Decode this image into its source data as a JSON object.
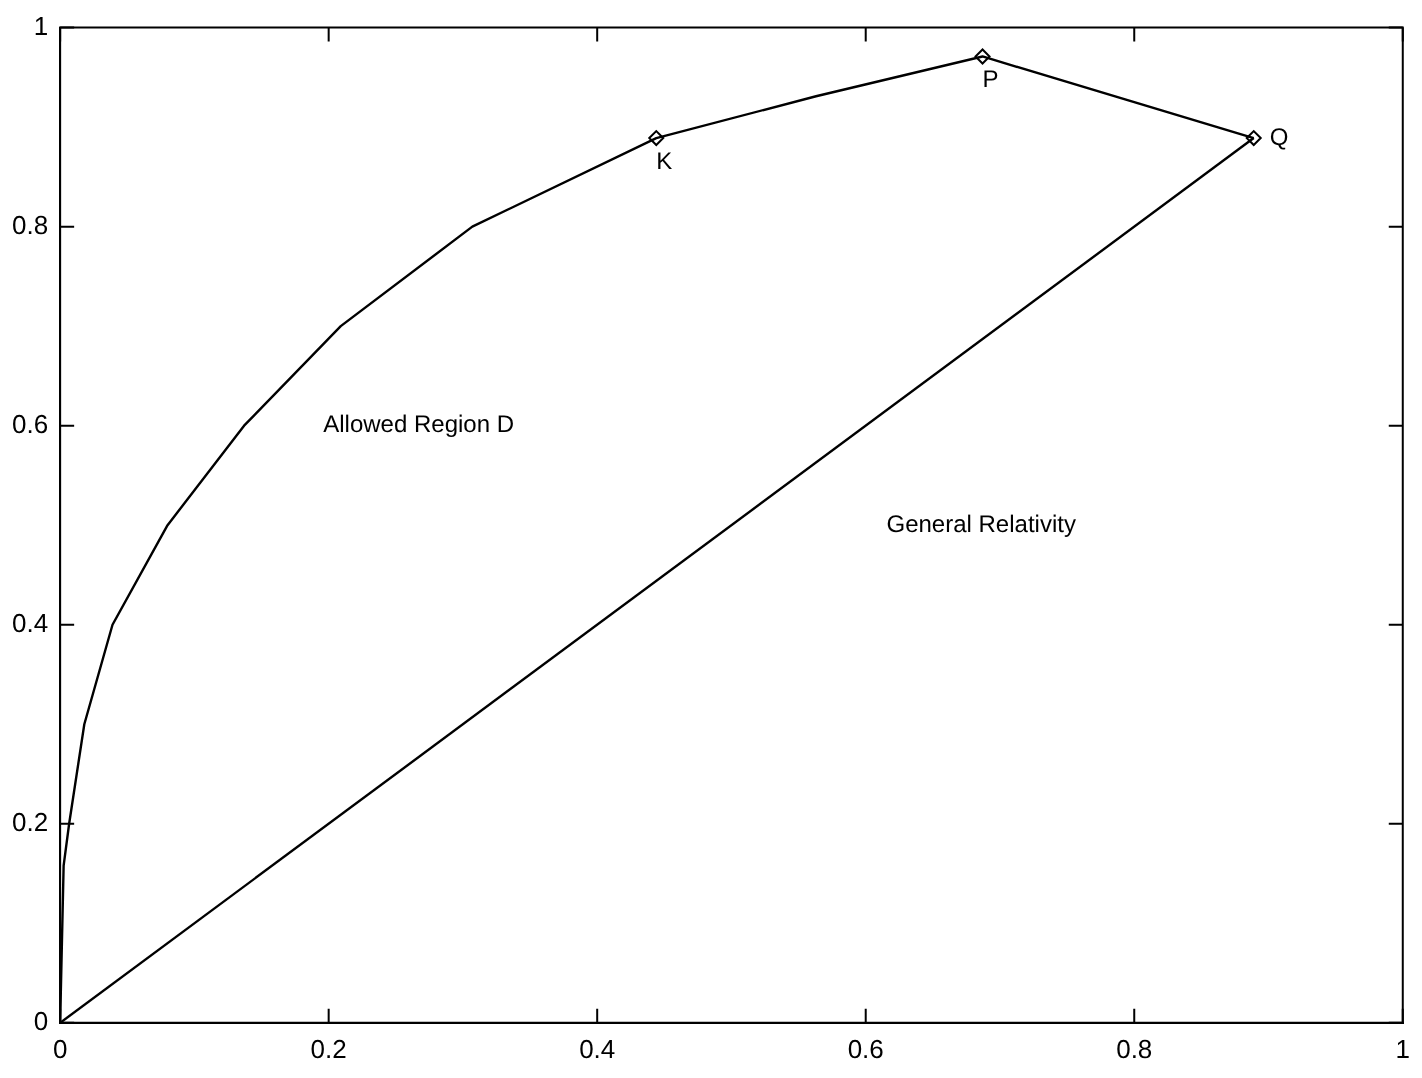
{
  "chart_data": {
    "type": "line",
    "xlim": [
      0,
      1
    ],
    "ylim": [
      0,
      1
    ],
    "xticks": [
      0,
      0.2,
      0.4,
      0.6,
      0.8,
      1
    ],
    "yticks": [
      0,
      0.2,
      0.4,
      0.6,
      0.8,
      1
    ],
    "series": [
      {
        "color": "#000000",
        "marker": "none",
        "x": [
          0,
          0.0026,
          0.0067,
          0.018,
          0.039,
          0.08,
          0.137,
          0.209,
          0.307,
          0.444,
          0.563,
          0.687,
          0.889
        ],
        "values": [
          0,
          0.158,
          0.2,
          0.3,
          0.4,
          0.5,
          0.6,
          0.7,
          0.8,
          0.889,
          0.931,
          0.971,
          0.889
        ]
      },
      {
        "color": "#000000",
        "marker": "none",
        "x": [
          0,
          0.889
        ],
        "values": [
          0,
          0.889
        ]
      },
      {
        "type": "scatter",
        "color": "#000000",
        "marker": "diamond",
        "x": [
          0.444,
          0.687,
          0.889
        ],
        "values": [
          0.889,
          0.971,
          0.889
        ]
      }
    ],
    "annotations": [
      {
        "text": "K",
        "x": 0.444,
        "y": 0.889
      },
      {
        "text": "P",
        "x": 0.687,
        "y": 0.971
      },
      {
        "text": "Q",
        "x": 0.889,
        "y": 0.889
      },
      "Allowed Region D",
      "General Relativity"
    ]
  }
}
